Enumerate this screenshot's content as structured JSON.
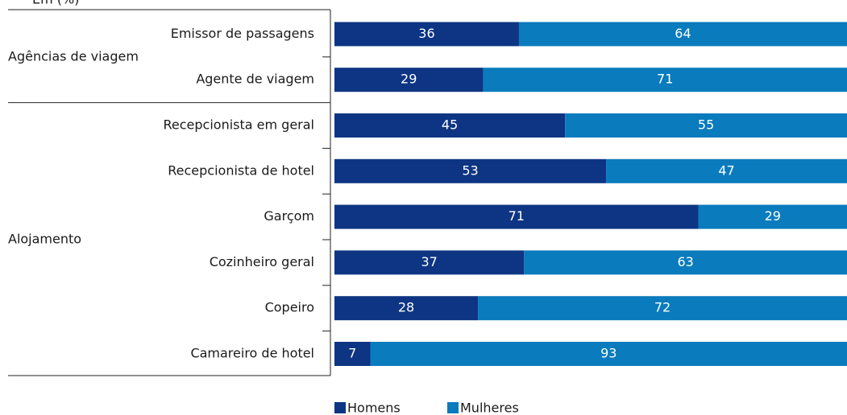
{
  "chart_data": {
    "type": "stacked-barh",
    "subtitle": "Em (%)",
    "groups": [
      {
        "name": "Agências de viagem",
        "categories": [
          "Emissor de passagens",
          "Agente de viagem"
        ]
      },
      {
        "name": "Alojamento",
        "categories": [
          "Recepcionista em geral",
          "Recepcionista de hotel",
          "Garçom",
          "Cozinheiro geral",
          "Copeiro",
          "Camareiro de hotel"
        ]
      }
    ],
    "series": [
      {
        "name": "Homens",
        "color": "#0d3583",
        "values": [
          36,
          29,
          45,
          53,
          71,
          37,
          28,
          7
        ]
      },
      {
        "name": "Mulheres",
        "color": "#0a7bbd",
        "values": [
          64,
          71,
          55,
          47,
          29,
          63,
          72,
          93
        ]
      }
    ],
    "xlim": [
      0,
      100
    ],
    "legend": "bottom"
  }
}
